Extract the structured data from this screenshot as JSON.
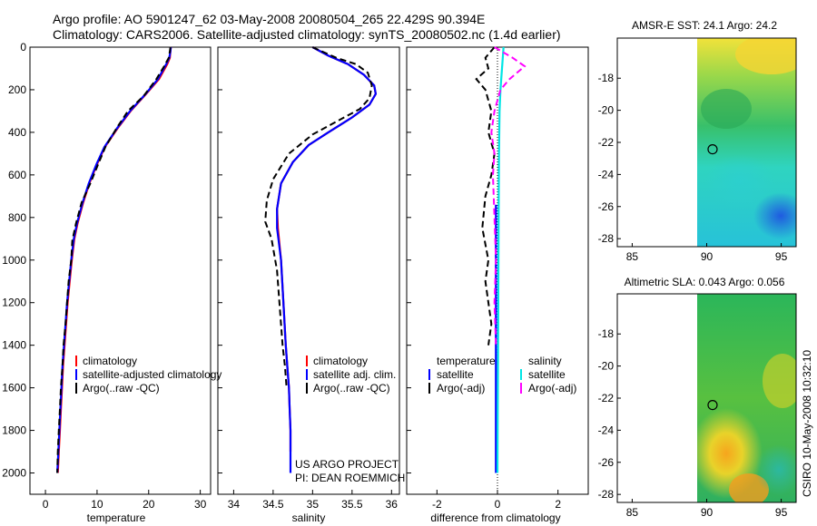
{
  "title": {
    "line1": "Argo profile: AO 5901247_62 03-May-2008 20080504_265 22.429S 90.394E",
    "line2": "Climatology: CARS2006. Satellite-adjusted climatology: synTS_20080502.nc (1.4d earlier)"
  },
  "colors": {
    "climatology": "#ff0000",
    "satellite": "#0000ff",
    "argo": "#000000",
    "sat_salinity": "#00e5e5",
    "argo_salinity": "#ff00ff"
  },
  "chart_data": [
    {
      "type": "line",
      "name": "temperature-profile",
      "xlabel": "temperature",
      "ylabel": "",
      "xlim": [
        -3,
        32
      ],
      "ylim": [
        2100,
        0
      ],
      "xticks": [
        0,
        10,
        20,
        30
      ],
      "yticks": [
        0,
        200,
        400,
        600,
        800,
        1000,
        1200,
        1400,
        1600,
        1800,
        2000
      ],
      "legend": [
        "climatology",
        "satellite-adjusted climatology",
        "Argo(..raw -QC)"
      ],
      "series": [
        {
          "name": "climatology",
          "color": "red",
          "dash": "solid",
          "x": [
            24.3,
            24.2,
            24.1,
            23.6,
            22.0,
            19.5,
            16.5,
            14.0,
            11.5,
            10.0,
            8.5,
            7.3,
            6.2,
            5.6,
            5.1,
            4.7,
            4.3,
            4.0,
            3.7,
            3.4,
            3.2,
            3.0,
            2.8,
            2.6,
            2.4
          ],
          "y": [
            0,
            20,
            50,
            80,
            150,
            220,
            300,
            380,
            470,
            550,
            640,
            730,
            830,
            900,
            1000,
            1100,
            1200,
            1300,
            1400,
            1500,
            1600,
            1700,
            1800,
            1900,
            2000
          ]
        },
        {
          "name": "satellite-adjusted climatology",
          "color": "blue",
          "dash": "solid",
          "x": [
            24.3,
            24.2,
            24.0,
            23.4,
            21.8,
            19.4,
            16.4,
            13.9,
            11.4,
            9.9,
            8.4,
            7.2,
            6.1,
            5.5,
            5.0,
            4.6,
            4.2,
            3.9,
            3.6,
            3.3,
            3.1,
            2.9,
            2.7,
            2.5,
            2.3
          ],
          "y": [
            0,
            20,
            50,
            80,
            150,
            220,
            300,
            380,
            470,
            550,
            640,
            730,
            830,
            900,
            1000,
            1100,
            1200,
            1300,
            1400,
            1500,
            1600,
            1700,
            1800,
            1900,
            2000
          ]
        },
        {
          "name": "Argo(..raw -QC)",
          "color": "black",
          "dash": "dashed",
          "x": [
            24.2,
            24.1,
            23.9,
            23.0,
            21.5,
            19.0,
            16.0,
            13.8,
            11.6,
            10.2,
            8.7,
            7.0,
            5.9,
            5.2,
            5.0,
            4.5,
            4.2,
            3.9,
            3.5,
            3.3,
            3.0,
            2.8,
            2.6,
            2.4,
            2.3
          ],
          "y": [
            0,
            20,
            50,
            90,
            150,
            230,
            300,
            380,
            470,
            550,
            640,
            730,
            830,
            910,
            1000,
            1100,
            1200,
            1300,
            1400,
            1500,
            1600,
            1700,
            1800,
            1900,
            2000
          ]
        }
      ]
    },
    {
      "type": "line",
      "name": "salinity-profile",
      "xlabel": "salinity",
      "ylabel": "",
      "xlim": [
        33.8,
        36.1
      ],
      "ylim": [
        2100,
        0
      ],
      "xticks": [
        34,
        34.5,
        35,
        35.5,
        36
      ],
      "legend": [
        "climatology",
        "satellite adj. clim.",
        "Argo(..raw -QC)"
      ],
      "annotation": [
        "US ARGO PROJECT",
        "PI: DEAN ROEMMICH"
      ],
      "series": [
        {
          "name": "climatology",
          "color": "red",
          "dash": "solid",
          "x": [
            35.0,
            35.2,
            35.45,
            35.65,
            35.78,
            35.8,
            35.72,
            35.5,
            35.2,
            34.95,
            34.75,
            34.6,
            34.55,
            34.56,
            34.6,
            34.63,
            34.66,
            34.68,
            34.7,
            34.71,
            34.72,
            34.72
          ],
          "y": [
            0,
            40,
            80,
            130,
            180,
            220,
            270,
            330,
            400,
            460,
            540,
            640,
            760,
            850,
            1000,
            1200,
            1400,
            1500,
            1600,
            1700,
            1800,
            1900
          ]
        },
        {
          "name": "satellite adj. clim.",
          "color": "blue",
          "dash": "solid",
          "x": [
            35.0,
            35.2,
            35.45,
            35.65,
            35.78,
            35.8,
            35.72,
            35.5,
            35.2,
            34.95,
            34.75,
            34.6,
            34.55,
            34.55,
            34.6,
            34.63,
            34.66,
            34.68,
            34.7,
            34.71,
            34.72,
            34.72
          ],
          "y": [
            0,
            40,
            80,
            130,
            180,
            220,
            270,
            330,
            400,
            460,
            540,
            640,
            760,
            850,
            1000,
            1200,
            1400,
            1500,
            1600,
            1700,
            1800,
            2000
          ]
        },
        {
          "name": "Argo(..raw -QC)",
          "color": "black",
          "dash": "dashed",
          "x": [
            35.0,
            35.3,
            35.55,
            35.7,
            35.75,
            35.72,
            35.6,
            35.3,
            35.0,
            34.7,
            34.5,
            34.42,
            34.4,
            34.48,
            34.55,
            34.58,
            34.62,
            34.65,
            34.67
          ],
          "y": [
            0,
            50,
            80,
            120,
            180,
            240,
            290,
            350,
            410,
            500,
            620,
            720,
            820,
            900,
            1050,
            1200,
            1400,
            1500,
            1600
          ]
        }
      ]
    },
    {
      "type": "line",
      "name": "difference-profile",
      "xlabel": "difference from climatology",
      "ylabel": "",
      "xlim": [
        -3,
        3
      ],
      "ylim": [
        2100,
        0
      ],
      "xticks": [
        -2,
        0,
        2
      ],
      "legend_temperature": [
        "temperature",
        "satellite",
        "Argo(-adj)"
      ],
      "legend_salinity": [
        "salinity",
        "satellite",
        "Argo(-adj)"
      ],
      "series": [
        {
          "name": "temperature satellite",
          "color": "blue",
          "dash": "solid",
          "x": [
            -0.05,
            -0.05,
            -0.05,
            -0.05,
            -0.05,
            -0.05
          ],
          "y": [
            740,
            1000,
            1300,
            1600,
            1800,
            2000
          ]
        },
        {
          "name": "temperature Argo(-adj)",
          "color": "black",
          "dash": "dashed",
          "x": [
            -0.1,
            -0.4,
            -0.3,
            -0.7,
            -0.4,
            -0.2,
            -0.3,
            -0.1,
            -0.2,
            -0.4,
            -0.5,
            -0.3,
            -0.4,
            -0.3,
            -0.2,
            -0.3
          ],
          "y": [
            0,
            50,
            100,
            150,
            200,
            300,
            400,
            500,
            600,
            700,
            850,
            1000,
            1100,
            1200,
            1300,
            1400
          ]
        },
        {
          "name": "salinity satellite",
          "color": "cyan",
          "dash": "solid",
          "x": [
            0.2,
            0.15,
            0.1,
            0.07,
            0.05,
            0.04,
            0.03,
            0.02,
            0.01,
            0.0
          ],
          "y": [
            0,
            100,
            200,
            300,
            500,
            800,
            1100,
            1400,
            1700,
            2000
          ]
        },
        {
          "name": "salinity Argo(-adj)",
          "color": "magenta",
          "dash": "dashed",
          "x": [
            -0.1,
            0.5,
            0.9,
            0.4,
            0.1,
            -0.1,
            -0.2,
            -0.1,
            -0.15,
            -0.1,
            -0.05,
            -0.1,
            -0.05
          ],
          "y": [
            0,
            50,
            90,
            150,
            200,
            300,
            400,
            500,
            600,
            800,
            1000,
            1200,
            1400
          ]
        }
      ]
    },
    {
      "type": "heatmap",
      "name": "sst-map",
      "title": "AMSR-E SST: 24.1 Argo: 24.2",
      "xlim": [
        84,
        96
      ],
      "ylim": [
        -28.5,
        -15.5
      ],
      "xticks": [
        85,
        90,
        95
      ],
      "yticks": [
        -18,
        -20,
        -22,
        -24,
        -26,
        -28
      ],
      "profile_location": {
        "lon": 90.394,
        "lat": -22.429
      }
    },
    {
      "type": "heatmap",
      "name": "sla-map",
      "title": "Altimetric SLA: 0.043 Argo: 0.056",
      "xlim": [
        84,
        96
      ],
      "ylim": [
        -28.5,
        -15.5
      ],
      "xticks": [
        85,
        90,
        95
      ],
      "yticks": [
        -18,
        -20,
        -22,
        -24,
        -26,
        -28
      ],
      "profile_location": {
        "lon": 90.394,
        "lat": -22.429
      }
    }
  ],
  "side_label": "CSIRO 10-May-2008 10:32:10"
}
